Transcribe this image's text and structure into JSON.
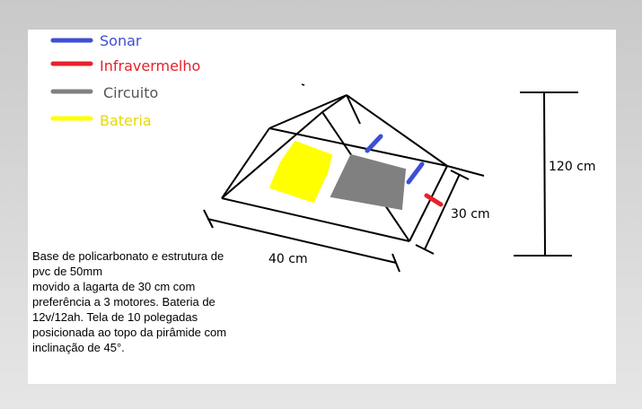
{
  "legend": [
    {
      "label": "Sonar",
      "color": "#3c4fd4",
      "icon": "blue-stroke-swatch"
    },
    {
      "label": "Infravermelho",
      "color": "#e8202a",
      "icon": "red-stroke-swatch"
    },
    {
      "label": "Circuito",
      "color": "#808080",
      "text_color": "#555555",
      "icon": "gray-stroke-swatch"
    },
    {
      "label": "Bateria",
      "color": "#ffff00",
      "text_color": "#e8d800",
      "icon": "yellow-stroke-swatch"
    }
  ],
  "dimensions": {
    "height": "120 cm",
    "width": "30 cm",
    "length": "40 cm"
  },
  "description": "Base de policarbonato e estrutura de pvc de 50mm\nmovido a lagarta de 30 cm com preferência a 3 motores. Bateria de 12v/12ah. Tela de 10 polegadas posicionada ao topo da pirâmide com inclinação de 45°.",
  "colors": {
    "sonar": "#3c4fd4",
    "infrared": "#e8202a",
    "circuit": "#808080",
    "battery": "#ffff00"
  }
}
